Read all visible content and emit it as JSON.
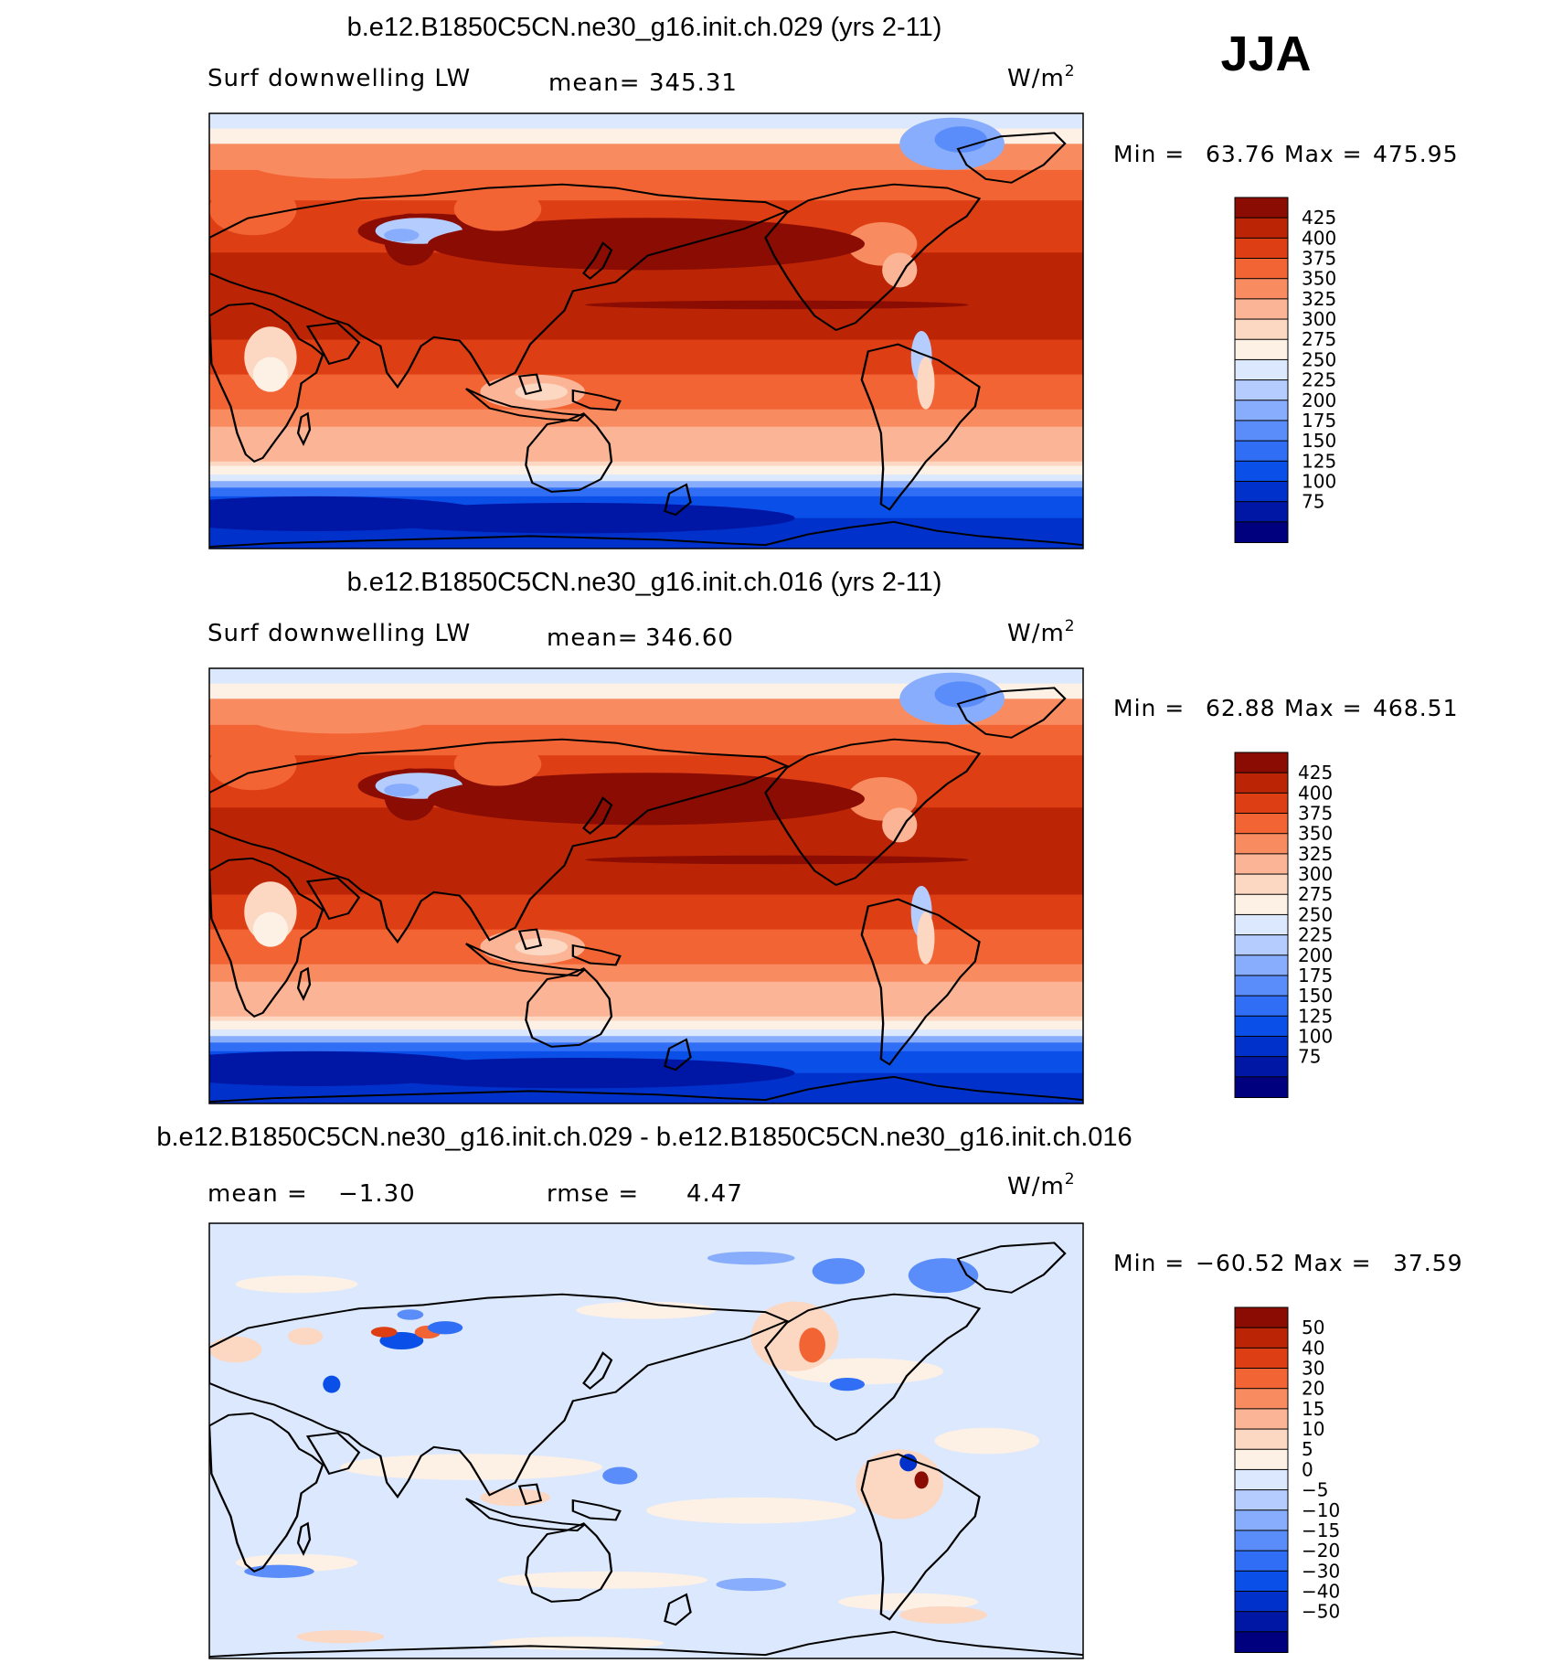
{
  "season": "JJA",
  "units_base": "W/m",
  "units_exp": "2",
  "palette": {
    "abs": [
      "#00007f",
      "#0016a5",
      "#0031cb",
      "#0a4fe8",
      "#2f6ef5",
      "#5a8df9",
      "#88adfc",
      "#b4cdfe",
      "#dbe8fd",
      "#fdf1e6",
      "#fcd7c2",
      "#fbb596",
      "#f88b5f",
      "#f26434",
      "#dd3e14",
      "#bb2506",
      "#8a0c02"
    ],
    "diff": [
      "#00007f",
      "#0016a5",
      "#0031cb",
      "#0a4fe8",
      "#2f6ef5",
      "#5a8df9",
      "#88adfc",
      "#b4cdfe",
      "#dbe8fd",
      "#fdf1e6",
      "#fcd7c2",
      "#fbb596",
      "#f88b5f",
      "#f26434",
      "#dd3e14",
      "#bb2506",
      "#8a0c02"
    ]
  },
  "panels": [
    {
      "id": "case1",
      "title": "b.e12.B1850C5CN.ne30_g16.init.ch.029 (yrs 2-11)",
      "variable": "Surf downwelling LW",
      "stat1_label": "mean=",
      "stat1_value": "345.31",
      "min_label": "Min =",
      "min_value": "63.76",
      "max_label": "Max =",
      "max_value": "475.95",
      "colorbar_labels": [
        "425",
        "400",
        "375",
        "350",
        "325",
        "300",
        "275",
        "250",
        "225",
        "200",
        "175",
        "150",
        "125",
        "100",
        "75"
      ]
    },
    {
      "id": "case2",
      "title": "b.e12.B1850C5CN.ne30_g16.init.ch.016 (yrs 2-11)",
      "variable": "Surf downwelling LW",
      "stat1_label": "mean=",
      "stat1_value": "346.60",
      "min_label": "Min =",
      "min_value": "62.88",
      "max_label": "Max =",
      "max_value": "468.51",
      "colorbar_labels": [
        "425",
        "400",
        "375",
        "350",
        "325",
        "300",
        "275",
        "250",
        "225",
        "200",
        "175",
        "150",
        "125",
        "100",
        "75"
      ]
    },
    {
      "id": "diff",
      "title": "b.e12.B1850C5CN.ne30_g16.init.ch.029 - b.e12.B1850C5CN.ne30_g16.init.ch.016",
      "stat1_label": "mean =",
      "stat1_value": "−1.30",
      "stat2_label": "rmse =",
      "stat2_value": "4.47",
      "min_label": "Min =",
      "min_value": "−60.52",
      "max_label": "Max =",
      "max_value": "37.59",
      "colorbar_labels": [
        "50",
        "40",
        "30",
        "20",
        "15",
        "10",
        "5",
        "0",
        "−5",
        "−10",
        "−15",
        "−20",
        "−30",
        "−40",
        "−50"
      ]
    }
  ]
}
